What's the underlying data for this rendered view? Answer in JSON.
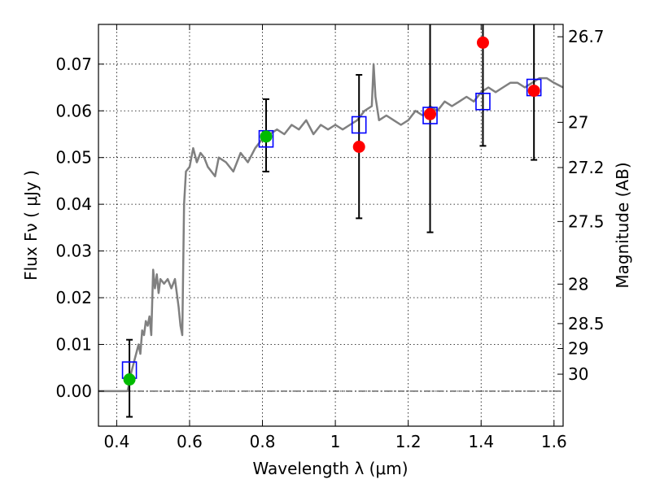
{
  "chart_data": {
    "type": "scatter",
    "xlabel": "Wavelength  λ (μm)",
    "ylabel": "Flux  Fν  ( μJy )",
    "y2label": "Magnitude (AB)",
    "xlim": [
      0.35,
      1.625
    ],
    "ylim": [
      -0.0075,
      0.0785
    ],
    "grid": true,
    "x_ticks": [
      0.4,
      0.6,
      0.8,
      1.0,
      1.2,
      1.4,
      1.6
    ],
    "x_tick_labels": [
      "0.4",
      "0.6",
      "0.8",
      "1",
      "1.2",
      "1.4",
      "1.6"
    ],
    "y_ticks": [
      0.0,
      0.01,
      0.02,
      0.03,
      0.04,
      0.05,
      0.06,
      0.07
    ],
    "y_tick_labels": [
      "0.00",
      "0.01",
      "0.02",
      "0.03",
      "0.04",
      "0.05",
      "0.06",
      "0.07"
    ],
    "y2_ticks": [
      26.7,
      27.0,
      27.2,
      27.5,
      28.0,
      28.5,
      29.0,
      30.0
    ],
    "y2_tick_labels": [
      "26.7",
      "27",
      "27.2",
      "27.5",
      "28",
      "28.5",
      "29",
      "30"
    ],
    "model_sed": {
      "color": "#808080",
      "x": [
        0.35,
        0.43,
        0.44,
        0.45,
        0.46,
        0.465,
        0.47,
        0.475,
        0.48,
        0.485,
        0.49,
        0.495,
        0.5,
        0.505,
        0.51,
        0.515,
        0.52,
        0.53,
        0.54,
        0.55,
        0.56,
        0.57,
        0.575,
        0.58,
        0.585,
        0.59,
        0.6,
        0.61,
        0.62,
        0.63,
        0.64,
        0.65,
        0.66,
        0.67,
        0.68,
        0.7,
        0.72,
        0.74,
        0.76,
        0.78,
        0.8,
        0.82,
        0.84,
        0.86,
        0.88,
        0.9,
        0.92,
        0.94,
        0.96,
        0.98,
        1.0,
        1.02,
        1.04,
        1.06,
        1.08,
        1.1,
        1.105,
        1.11,
        1.12,
        1.14,
        1.16,
        1.18,
        1.2,
        1.22,
        1.24,
        1.26,
        1.28,
        1.3,
        1.32,
        1.34,
        1.36,
        1.38,
        1.4,
        1.42,
        1.44,
        1.46,
        1.48,
        1.5,
        1.52,
        1.54,
        1.56,
        1.58,
        1.6,
        1.625
      ],
      "y": [
        0.0,
        0.0,
        0.004,
        0.007,
        0.01,
        0.008,
        0.013,
        0.012,
        0.015,
        0.014,
        0.016,
        0.012,
        0.026,
        0.022,
        0.025,
        0.021,
        0.024,
        0.023,
        0.024,
        0.022,
        0.024,
        0.018,
        0.014,
        0.012,
        0.04,
        0.047,
        0.048,
        0.052,
        0.049,
        0.051,
        0.05,
        0.048,
        0.047,
        0.046,
        0.05,
        0.049,
        0.047,
        0.051,
        0.049,
        0.052,
        0.054,
        0.055,
        0.056,
        0.055,
        0.057,
        0.056,
        0.058,
        0.055,
        0.057,
        0.056,
        0.057,
        0.056,
        0.057,
        0.058,
        0.06,
        0.061,
        0.07,
        0.063,
        0.058,
        0.059,
        0.058,
        0.057,
        0.058,
        0.06,
        0.059,
        0.061,
        0.06,
        0.062,
        0.061,
        0.062,
        0.063,
        0.062,
        0.064,
        0.065,
        0.064,
        0.065,
        0.066,
        0.066,
        0.065,
        0.066,
        0.067,
        0.067,
        0.066,
        0.065
      ]
    },
    "model_photometry": {
      "color": "#0000ff",
      "x": [
        0.435,
        0.81,
        1.065,
        1.26,
        1.405,
        1.545
      ],
      "y": [
        0.0045,
        0.054,
        0.057,
        0.059,
        0.062,
        0.065
      ]
    },
    "observed_detections": {
      "color": "#00bb00",
      "x": [
        0.435,
        0.81
      ],
      "y": [
        0.0025,
        0.0545
      ],
      "err_low": [
        -0.0055,
        0.047
      ],
      "err_high": [
        0.011,
        0.0625
      ]
    },
    "observed_upper": {
      "color": "#ff0000",
      "x": [
        1.065,
        1.26,
        1.405,
        1.545
      ],
      "y": [
        0.0523,
        0.0593,
        0.0746,
        0.0643
      ],
      "err_low": [
        0.037,
        0.034,
        0.0525,
        0.0495
      ],
      "err_high": [
        0.0677,
        0.0785,
        0.0785,
        0.0785
      ]
    },
    "zero_line": 0.0
  }
}
